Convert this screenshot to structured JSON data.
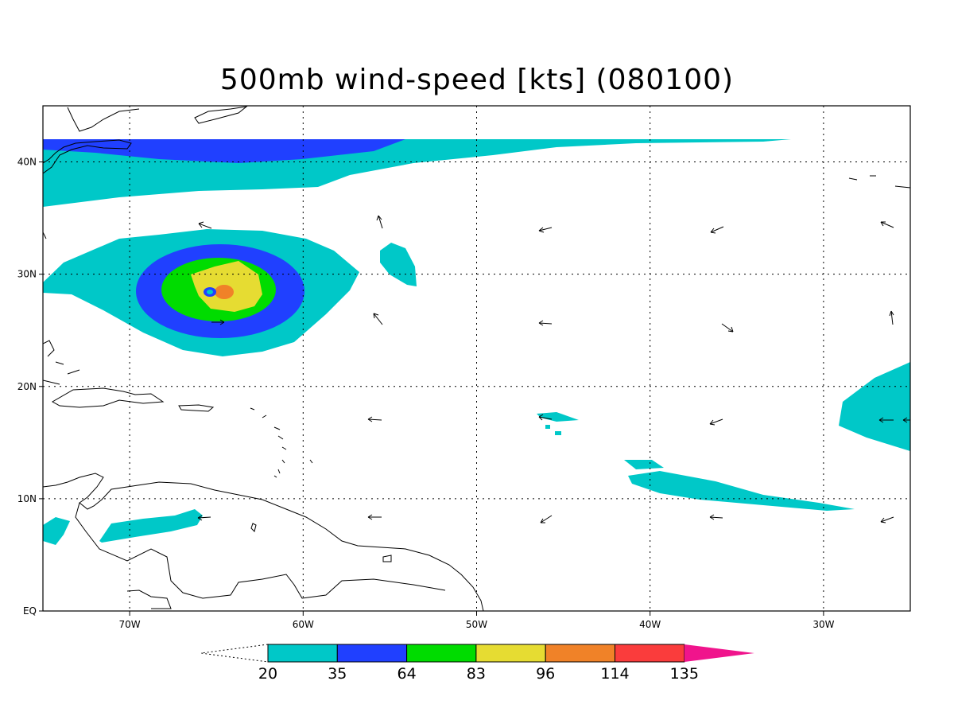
{
  "title": "500mb wind-speed [kts] (080100)",
  "map": {
    "lon_range": [
      -75,
      -25
    ],
    "lat_range": [
      0,
      45
    ],
    "x_ticks": [
      {
        "lon": -70,
        "label": "70W"
      },
      {
        "lon": -60,
        "label": "60W"
      },
      {
        "lon": -50,
        "label": "50W"
      },
      {
        "lon": -40,
        "label": "40W"
      },
      {
        "lon": -30,
        "label": "30W"
      }
    ],
    "y_ticks": [
      {
        "lat": 0,
        "label": "EQ"
      },
      {
        "lat": 10,
        "label": "10N"
      },
      {
        "lat": 20,
        "label": "20N"
      },
      {
        "lat": 30,
        "label": "30N"
      },
      {
        "lat": 40,
        "label": "40N"
      }
    ],
    "grid": true,
    "colorbar": {
      "levels": [
        "20",
        "35",
        "64",
        "83",
        "96",
        "114",
        "135"
      ],
      "colors": [
        "#00c8c8",
        "#2040ff",
        "#00dc00",
        "#e6dc32",
        "#f08228",
        "#fa3c3c",
        "#f0148c"
      ]
    }
  }
}
